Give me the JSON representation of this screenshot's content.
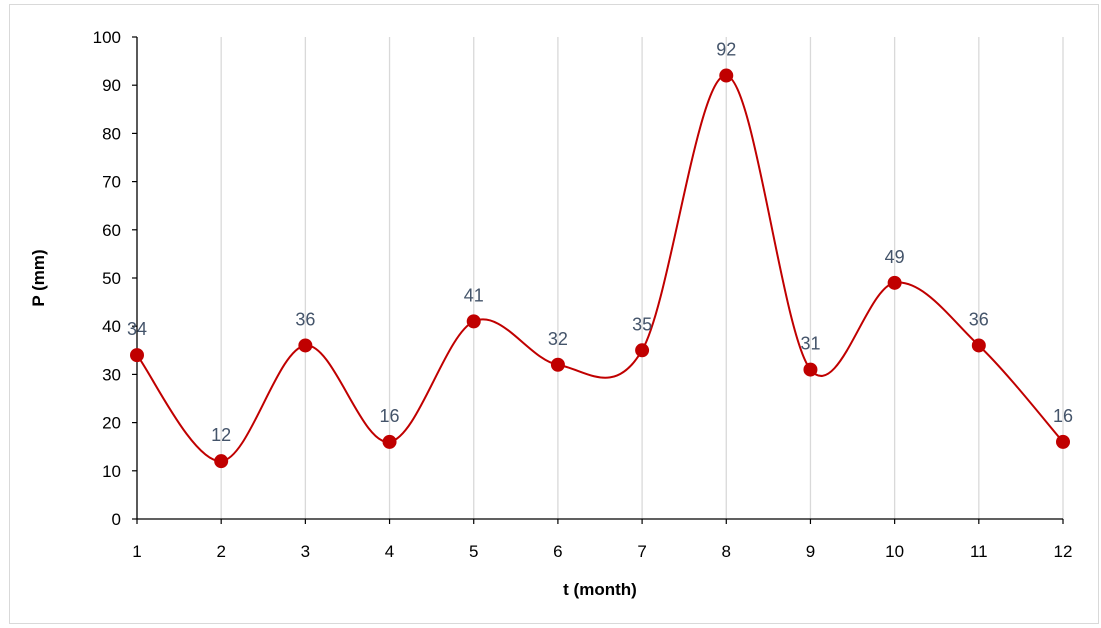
{
  "chart_data": {
    "type": "line",
    "xlabel": "t (month)",
    "ylabel": "P (mm)",
    "x": [
      1,
      2,
      3,
      4,
      5,
      6,
      7,
      8,
      9,
      10,
      11,
      12
    ],
    "series": [
      {
        "values": [
          34,
          12,
          36,
          16,
          41,
          32,
          35,
          92,
          31,
          49,
          36,
          16
        ]
      }
    ],
    "xlim": [
      1,
      12
    ],
    "ylim": [
      0,
      100
    ],
    "yticks": [
      0,
      10,
      20,
      30,
      40,
      50,
      60,
      70,
      80,
      90,
      100
    ],
    "grid": "vertical",
    "smoothed": true,
    "data_labels": true,
    "line_color": "#c00000",
    "marker_color": "#c00000",
    "label_color": "#44546a",
    "grid_color": "#d9d9d9"
  }
}
